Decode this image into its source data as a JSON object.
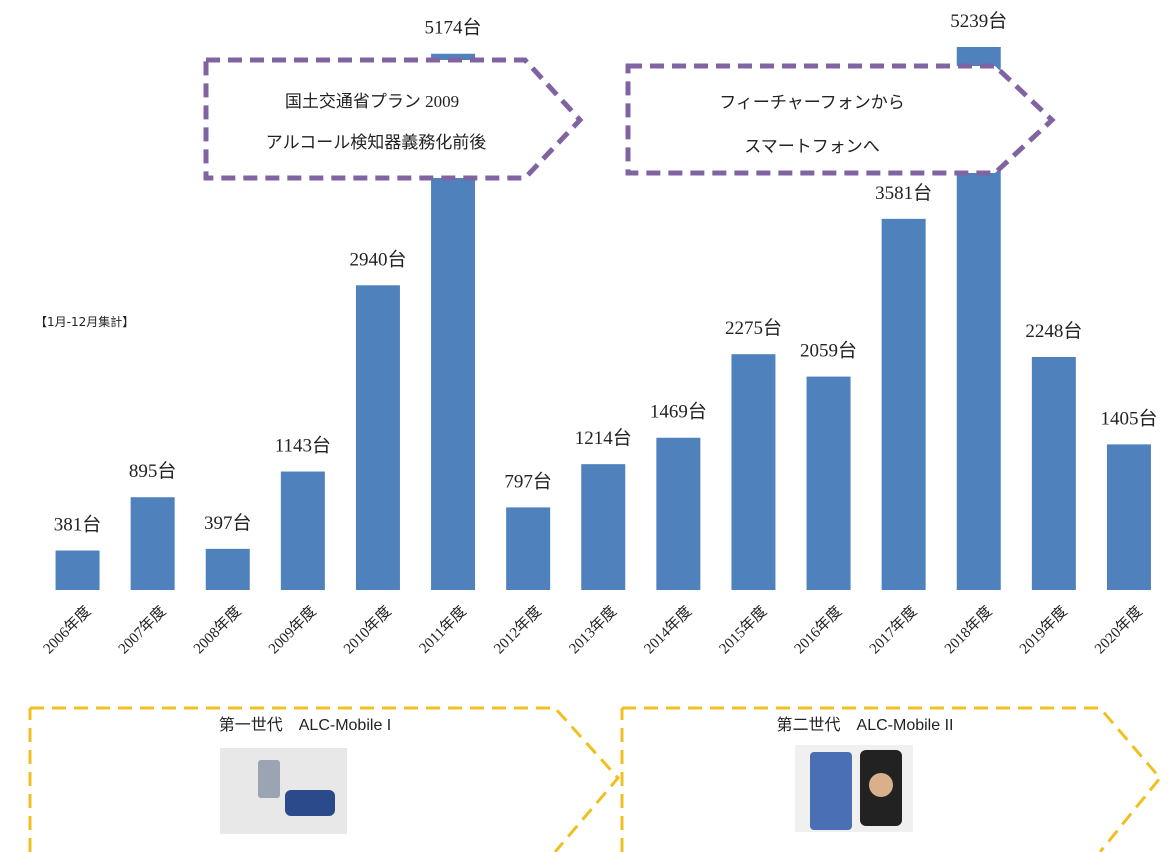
{
  "chart_data": {
    "type": "bar",
    "categories": [
      "2006年度",
      "2007年度",
      "2008年度",
      "2009年度",
      "2010年度",
      "2011年度",
      "2012年度",
      "2013年度",
      "2014年度",
      "2015年度",
      "2016年度",
      "2017年度",
      "2018年度",
      "2019年度",
      "2020年度"
    ],
    "values": [
      381,
      895,
      397,
      1143,
      2940,
      5174,
      797,
      1214,
      1469,
      2275,
      2059,
      3581,
      5239,
      2248,
      1405
    ],
    "value_labels": [
      "381台",
      "895台",
      "397台",
      "1143台",
      "2940台",
      "5174台",
      "797台",
      "1214台",
      "1469台",
      "2275台",
      "2059台",
      "3581台",
      "5239台",
      "2248台",
      "1405台"
    ],
    "color": "#4f81bd",
    "note": "【1月-12月集計】",
    "annotations": [
      [
        "国土交通省プラン 2009",
        "アルコール検知器義務化前後"
      ],
      [
        "フィーチャーフォンから",
        "スマートフォンへ"
      ]
    ],
    "generations": [
      "第一世代　ALC-Mobile I",
      "第二世代　ALC-Mobile II"
    ]
  }
}
